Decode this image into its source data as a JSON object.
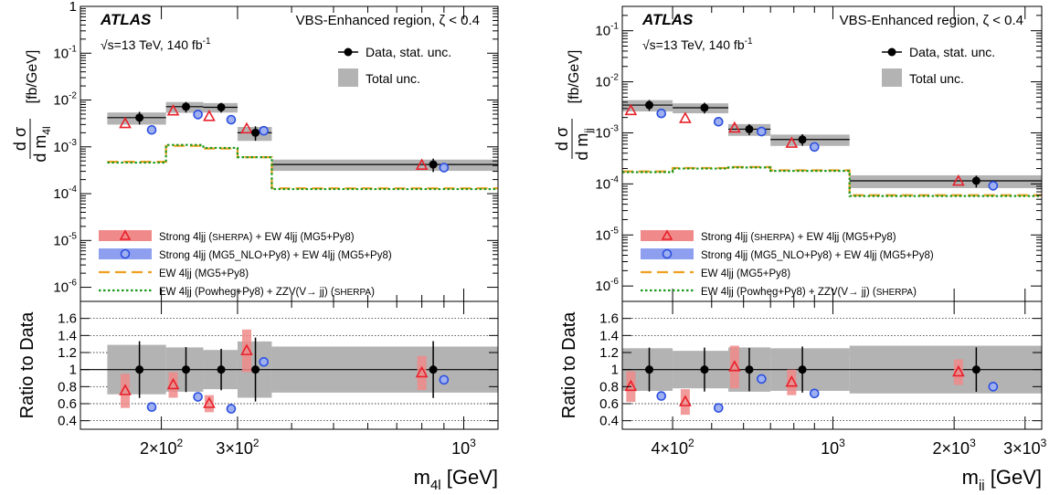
{
  "chart_data": [
    {
      "type": "scatter",
      "panel": "m4l",
      "atlas_label": "ATLAS",
      "region_label": "VBS-Enhanced region, ζ < 0.4",
      "lumi_label": "√s=13 TeV,  140 fb",
      "lumi_sup": "-1",
      "ylabel": "dσ/dm [fb/GeV]",
      "ylabel_main": "d σ",
      "ylabel_den": "d m",
      "ylabel_sub": "4l",
      "ylabel_unit": "[fb/GeV]",
      "ratio_ylabel": "Ratio to Data",
      "xlabel": "m",
      "xlabel_sub": "4l",
      "xlabel_unit": " [GeV]",
      "xscale": "log",
      "yscale": "log",
      "xlim": [
        130,
        1200
      ],
      "ylim": [
        5e-07,
        1
      ],
      "ratio_ylim": [
        0.3,
        1.8
      ],
      "x_major_ticks": [
        200,
        300,
        1000
      ],
      "x_tick_labels": [
        "2×10",
        "3×10",
        "10"
      ],
      "x_tick_sups": [
        "2",
        "2",
        "3"
      ],
      "y_tick_exps": [
        -6,
        -5,
        -4,
        -3,
        -2,
        -1,
        0
      ],
      "ratio_ticks": [
        0.4,
        0.6,
        0.8,
        1.0,
        1.2,
        1.4,
        1.6
      ],
      "ratio_tick_labels": [
        "0.4",
        "0.6",
        "0.8",
        "1",
        "1.2",
        "1.4",
        "1.6"
      ],
      "bins": [
        [
          150,
          205
        ],
        [
          205,
          250
        ],
        [
          250,
          300
        ],
        [
          300,
          360
        ],
        [
          360,
          1200
        ]
      ],
      "data": {
        "name": "Data, stat. unc.",
        "x": [
          178,
          228,
          275,
          330,
          850
        ],
        "y": [
          0.0042,
          0.0072,
          0.007,
          0.002,
          0.00042
        ],
        "yerr_lo": [
          0.0012,
          0.0018,
          0.0016,
          0.00065,
          0.00013
        ],
        "yerr_hi": [
          0.0014,
          0.0019,
          0.0017,
          0.00075,
          0.00014
        ]
      },
      "total_unc": {
        "name": "Total unc.",
        "rel_lo": [
          0.29,
          0.26,
          0.23,
          0.33,
          0.27
        ],
        "rel_hi": [
          0.29,
          0.26,
          0.23,
          0.33,
          0.27
        ]
      },
      "series": [
        {
          "name": "Strong 4ljj (Sherpa) + EW 4ljj (MG5+Py8)",
          "marker": "triangle",
          "color": "#e8202a",
          "x": [
            165,
            213,
            258,
            315,
            800
          ],
          "y": [
            0.0031,
            0.0058,
            0.0044,
            0.0024,
            0.0004
          ],
          "ratio": [
            0.75,
            0.82,
            0.6,
            1.22,
            0.96
          ],
          "ratio_unc": [
            0.2,
            0.15,
            0.1,
            0.25,
            0.2
          ]
        },
        {
          "name": "Strong 4ljj (MG5_NLO+Py8) + EW 4ljj (MG5+Py8)",
          "marker": "circle",
          "color": "#2b4fe0",
          "x": [
            190,
            243,
            290,
            345,
            900
          ],
          "y": [
            0.0023,
            0.0049,
            0.0038,
            0.0022,
            0.00036
          ],
          "ratio": [
            0.56,
            0.68,
            0.54,
            1.09,
            0.88
          ]
        },
        {
          "name": "EW 4ljj (MG5+Py8)",
          "line": "dashed",
          "color": "#f0a020",
          "y": [
            0.00048,
            0.00105,
            0.00092,
            0.0006,
            0.00013
          ]
        },
        {
          "name": "EW 4ljj (Powheg+Py8) + ZZV(V→ jj) (Sherpa)",
          "line": "dotted",
          "color": "#1e9a1e",
          "y": [
            0.00046,
            0.0011,
            0.00095,
            0.0006,
            0.000125
          ]
        }
      ],
      "legend": [
        {
          "pre": "Strong 4ljj (",
          "sc": "Sherpa",
          "post": ") + EW 4ljj (MG5+Py8)"
        },
        {
          "pre": "Strong 4ljj (MG5_NLO+Py8) + EW 4ljj (MG5+Py8)",
          "sc": "",
          "post": ""
        },
        {
          "pre": "EW 4ljj (MG5+Py8)",
          "sc": "",
          "post": ""
        },
        {
          "pre": "EW 4ljj (Powheg+Py8) + ZZV(V→ jj) (",
          "sc": "Sherpa",
          "post": ")"
        }
      ]
    },
    {
      "type": "scatter",
      "panel": "mjj",
      "atlas_label": "ATLAS",
      "region_label": "VBS-Enhanced region, ζ < 0.4",
      "lumi_label": "√s=13 TeV,  140 fb",
      "lumi_sup": "-1",
      "ylabel": "dσ/dm [fb/GeV]",
      "ylabel_main": "d σ",
      "ylabel_den": "d m",
      "ylabel_sub": "jj",
      "ylabel_unit": "[fb/GeV]",
      "ratio_ylabel": "Ratio to Data",
      "xlabel": "m",
      "xlabel_sub": "jj",
      "xlabel_unit": " [GeV]",
      "xscale": "log",
      "yscale": "log",
      "xlim": [
        300,
        3300
      ],
      "ylim": [
        5e-07,
        0.3
      ],
      "ratio_ylim": [
        0.3,
        1.8
      ],
      "x_major_ticks": [
        400,
        1000,
        2000,
        3000
      ],
      "x_tick_labels": [
        "4×10",
        "10",
        "2×10",
        "3×10"
      ],
      "x_tick_sups": [
        "2",
        "3",
        "3",
        "3"
      ],
      "y_tick_exps": [
        -6,
        -5,
        -4,
        -3,
        -2,
        -1
      ],
      "ratio_ticks": [
        0.4,
        0.6,
        0.8,
        1.0,
        1.2,
        1.4,
        1.6
      ],
      "ratio_tick_labels": [
        "0.4",
        "0.6",
        "0.8",
        "1",
        "1.2",
        "1.4",
        "1.6"
      ],
      "bins": [
        [
          300,
          400
        ],
        [
          400,
          550
        ],
        [
          550,
          700
        ],
        [
          700,
          1100
        ],
        [
          1100,
          3300
        ]
      ],
      "data": {
        "name": "Data, stat. unc.",
        "x": [
          350,
          480,
          620,
          840,
          2270
        ],
        "y": [
          0.0035,
          0.0031,
          0.00118,
          0.00074,
          0.000115
        ],
        "yerr_lo": [
          0.0008,
          0.0007,
          0.00028,
          0.00018,
          3e-05
        ],
        "yerr_hi": [
          0.0009,
          0.0008,
          0.0003,
          0.0002,
          3e-05
        ]
      },
      "total_unc": {
        "name": "Total unc.",
        "rel_lo": [
          0.25,
          0.22,
          0.26,
          0.25,
          0.28
        ],
        "rel_hi": [
          0.25,
          0.22,
          0.26,
          0.25,
          0.28
        ]
      },
      "series": [
        {
          "name": "Strong 4ljj (Sherpa) + EW 4ljj (MG5+Py8)",
          "marker": "triangle",
          "color": "#e8202a",
          "x": [
            315,
            430,
            570,
            790,
            2050
          ],
          "y": [
            0.0027,
            0.0019,
            0.00123,
            0.00062,
            0.000112
          ],
          "ratio": [
            0.8,
            0.62,
            1.03,
            0.85,
            0.97
          ],
          "ratio_unc": [
            0.18,
            0.15,
            0.25,
            0.15,
            0.15
          ]
        },
        {
          "name": "Strong 4ljj (MG5_NLO+Py8) + EW 4ljj (MG5+Py8)",
          "marker": "circle",
          "color": "#2b4fe0",
          "x": [
            375,
            520,
            665,
            900,
            2500
          ],
          "y": [
            0.0024,
            0.00165,
            0.00106,
            0.00053,
            9.2e-05
          ],
          "ratio": [
            0.69,
            0.55,
            0.89,
            0.72,
            0.8
          ]
        },
        {
          "name": "EW 4ljj (MG5+Py8)",
          "line": "dashed",
          "color": "#f0a020",
          "y": [
            0.000175,
            0.000205,
            0.000215,
            0.000185,
            6e-05
          ]
        },
        {
          "name": "EW 4ljj (Powheg+Py8) + ZZV(V→ jj) (Sherpa)",
          "line": "dotted",
          "color": "#1e9a1e",
          "y": [
            0.00017,
            0.0002,
            0.00021,
            0.00018,
            5.8e-05
          ]
        }
      ],
      "legend": [
        {
          "pre": "Strong 4ljj (",
          "sc": "Sherpa",
          "post": ") + EW 4ljj (MG5+Py8)"
        },
        {
          "pre": "Strong 4ljj (MG5_NLO+Py8) + EW 4ljj (MG5+Py8)",
          "sc": "",
          "post": ""
        },
        {
          "pre": "EW 4ljj (MG5+Py8)",
          "sc": "",
          "post": ""
        },
        {
          "pre": "EW 4ljj (Powheg+Py8) + ZZV(V→ jj) (",
          "sc": "Sherpa",
          "post": ")"
        }
      ]
    }
  ]
}
